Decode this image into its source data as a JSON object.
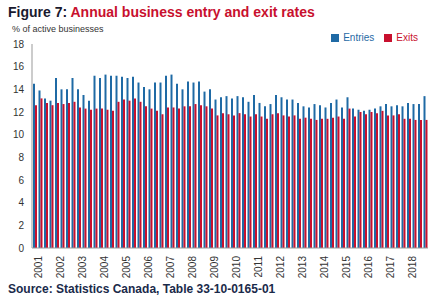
{
  "chart_data": {
    "type": "bar",
    "title": "Figure 7: Annual business entry and exit rates",
    "y_label": "% of active businesses",
    "source": "Source: Statistics Canada, Table 33-10-0165-01",
    "categories": [
      "2001",
      null,
      null,
      null,
      "2002",
      null,
      null,
      null,
      "2003",
      null,
      null,
      null,
      "2004",
      null,
      null,
      null,
      "2005",
      null,
      null,
      null,
      "2006",
      null,
      null,
      null,
      "2007",
      null,
      null,
      null,
      "2008",
      null,
      null,
      null,
      "2009",
      null,
      null,
      null,
      "2010",
      null,
      null,
      null,
      "2011",
      null,
      null,
      null,
      "2012",
      null,
      null,
      null,
      "2013",
      null,
      null,
      null,
      "2014",
      null,
      null,
      null,
      "2015",
      null,
      null,
      null,
      "2016",
      null,
      null,
      null,
      "2017",
      null,
      null,
      null,
      "2018",
      null,
      null,
      null
    ],
    "series": [
      {
        "name": "Entries",
        "color": "#1f6aa5",
        "values": [
          14.5,
          13.9,
          13.2,
          13.0,
          15.0,
          14.0,
          14.0,
          15.0,
          14.0,
          13.5,
          13.0,
          15.2,
          15.0,
          15.3,
          15.2,
          15.2,
          15.1,
          15.0,
          15.1,
          14.6,
          14.2,
          14.0,
          14.6,
          14.6,
          15.2,
          15.3,
          14.5,
          14.0,
          14.7,
          14.6,
          14.7,
          13.8,
          14.0,
          13.1,
          13.3,
          13.4,
          13.2,
          13.4,
          13.3,
          12.9,
          13.5,
          12.8,
          12.5,
          12.7,
          13.5,
          13.3,
          13.1,
          13.1,
          12.8,
          12.5,
          12.4,
          12.7,
          12.6,
          12.4,
          12.8,
          13.1,
          12.4,
          13.3,
          12.3,
          12.2,
          12.1,
          12.2,
          12.3,
          12.5,
          12.7,
          12.5,
          12.6,
          12.5,
          12.8,
          12.7,
          12.7,
          13.4
        ]
      },
      {
        "name": "Exits",
        "color": "#c8102e",
        "values": [
          12.6,
          13.2,
          12.8,
          12.6,
          12.8,
          12.7,
          12.8,
          12.9,
          12.4,
          12.3,
          12.2,
          12.3,
          12.3,
          12.2,
          12.1,
          12.9,
          13.1,
          13.0,
          13.2,
          12.9,
          12.5,
          12.3,
          12.1,
          11.8,
          12.4,
          12.4,
          12.3,
          12.5,
          12.5,
          12.7,
          12.6,
          12.5,
          12.3,
          11.7,
          11.9,
          11.8,
          11.7,
          11.9,
          11.8,
          11.6,
          11.8,
          11.6,
          11.4,
          11.8,
          11.9,
          11.7,
          11.6,
          11.7,
          11.4,
          11.5,
          11.4,
          11.3,
          11.4,
          11.4,
          11.5,
          11.6,
          11.4,
          12.3,
          11.6,
          12.0,
          11.8,
          12.0,
          11.9,
          12.1,
          11.7,
          11.7,
          11.8,
          11.4,
          11.4,
          11.3,
          11.3,
          11.3
        ]
      }
    ],
    "ylim": [
      0,
      18
    ],
    "yticks": [
      0,
      2,
      4,
      6,
      8,
      10,
      12,
      14,
      16,
      18
    ],
    "grid": false,
    "legend": "top-right"
  }
}
